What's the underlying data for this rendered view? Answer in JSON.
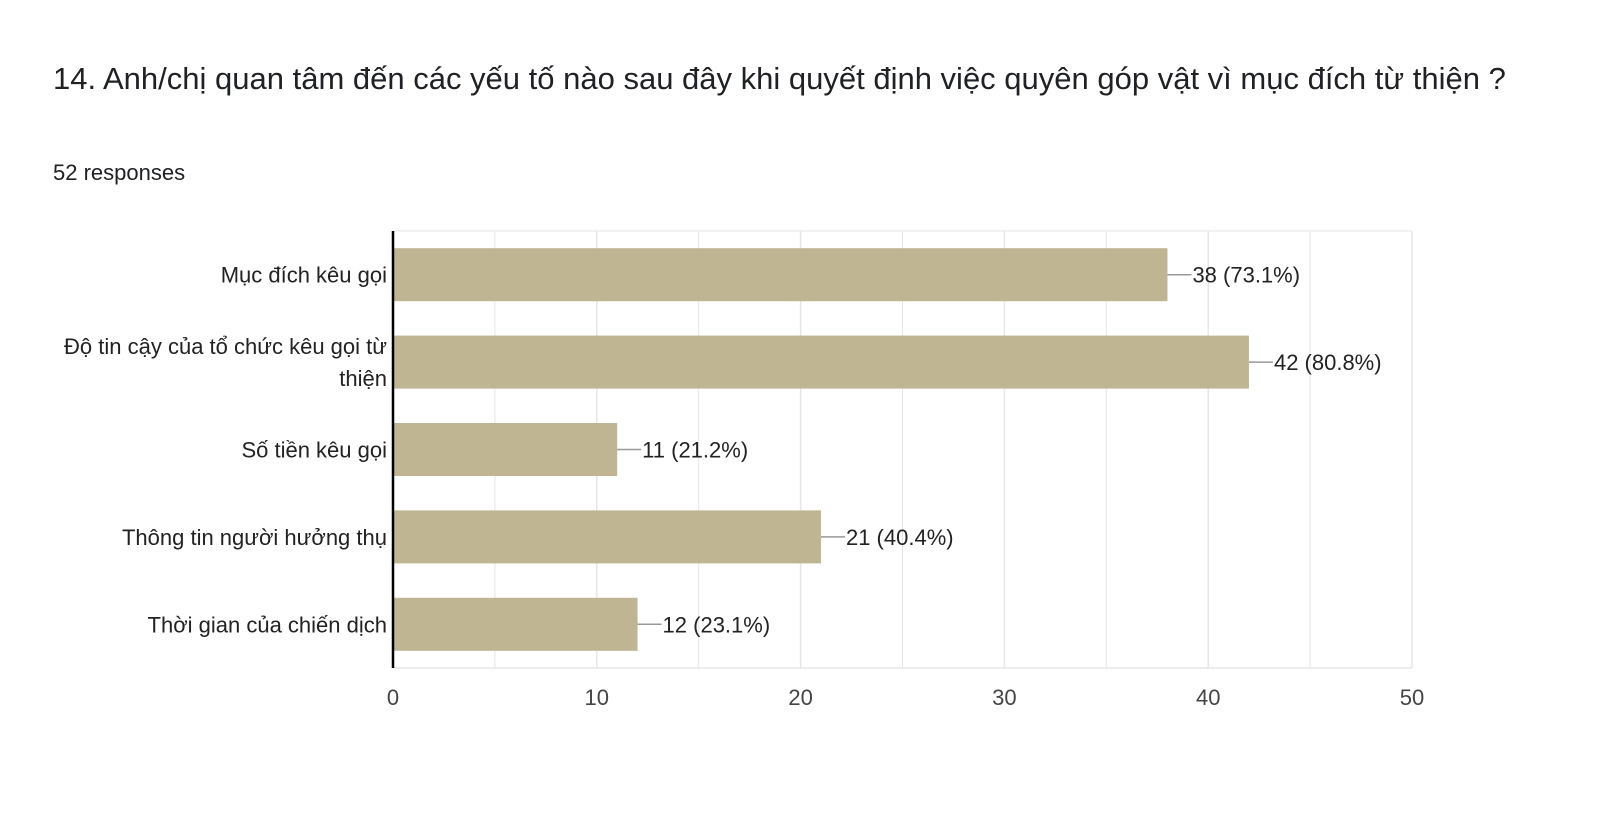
{
  "question": {
    "title": "14. Anh/chị quan tâm đến các yếu tố nào sau đây khi quyết định việc quyên góp vật vì mục đích từ thiện ?",
    "responses": "52 responses"
  },
  "colors": {
    "bar": "#bfb592",
    "grid": "#e6e6e6",
    "axis": "#000000",
    "leader": "#999999"
  },
  "chart_data": {
    "type": "bar",
    "orientation": "horizontal",
    "categories": [
      [
        "Mục đích kêu gọi"
      ],
      [
        "Độ tin cậy của tổ chức kêu gọi từ",
        "thiện"
      ],
      [
        "Số tiền kêu gọi"
      ],
      [
        "Thông tin người hưởng thụ"
      ],
      [
        "Thời gian của chiến dịch"
      ]
    ],
    "values": [
      38,
      42,
      11,
      21,
      12
    ],
    "data_labels": [
      "38 (73.1%)",
      "42 (80.8%)",
      "11 (21.2%)",
      "21 (40.4%)",
      "12 (23.1%)"
    ],
    "xlim": [
      0,
      50
    ],
    "xticks": [
      0,
      10,
      20,
      30,
      40,
      50
    ],
    "minor_gridlines_every": 5,
    "grid": true
  }
}
